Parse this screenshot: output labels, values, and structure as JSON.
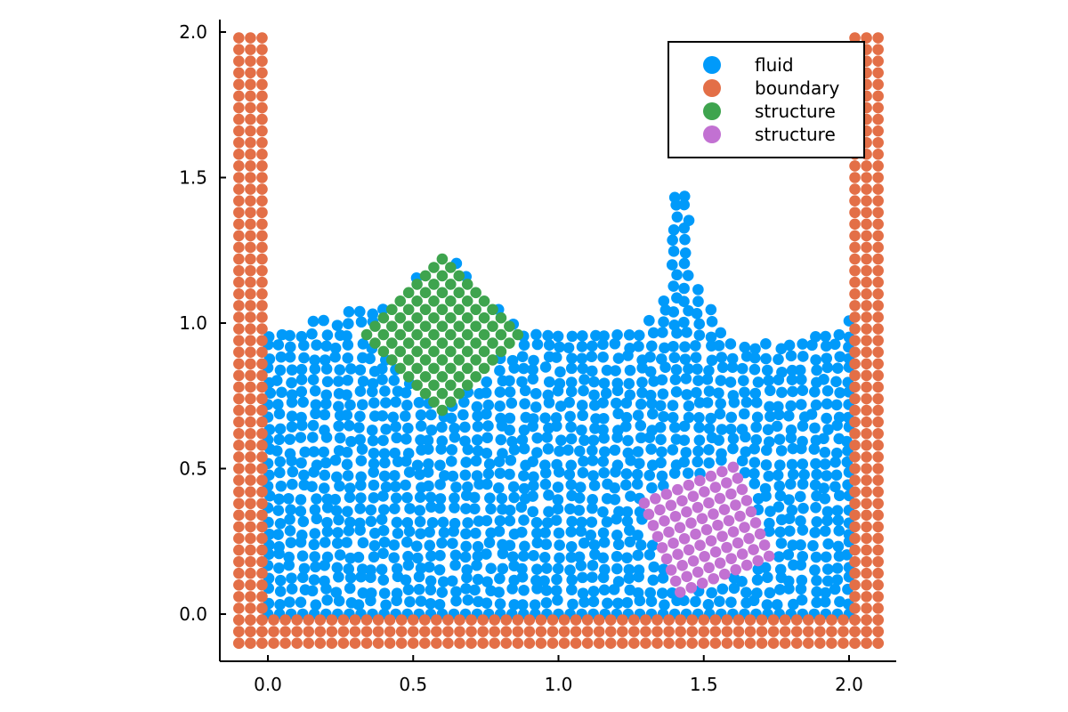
{
  "chart_data": {
    "type": "scatter",
    "title": "",
    "xlabel": "",
    "ylabel": "",
    "xlim": [
      -0.17,
      2.17
    ],
    "ylim": [
      -0.165,
      2.045
    ],
    "aspect": "equal",
    "grid": false,
    "legend_position": "top-right",
    "x_ticks": [
      0.0,
      0.5,
      1.0,
      1.5,
      2.0
    ],
    "x_tick_labels": [
      "0.0",
      "0.5",
      "1.0",
      "1.5",
      "2.0"
    ],
    "y_ticks": [
      0.0,
      0.5,
      1.0,
      1.5,
      2.0
    ],
    "y_tick_labels": [
      "0.0",
      "0.5",
      "1.0",
      "1.5",
      "2.0"
    ],
    "particle_spacing": 0.04,
    "series": [
      {
        "name": "fluid",
        "color": "#009AFA",
        "region": {
          "x": [
            0.0,
            2.0
          ],
          "y": [
            0.0,
            1.0
          ]
        },
        "surface_peaks": [
          {
            "x": 0.6,
            "y": 1.27
          },
          {
            "x": 1.43,
            "y": 1.44
          }
        ],
        "excludes": [
          "structure"
        ]
      },
      {
        "name": "boundary",
        "color": "#E36F47",
        "layers": 3,
        "left_wall_x": [
          -0.1,
          -0.06,
          -0.02
        ],
        "right_wall_x": [
          2.02,
          2.06,
          2.1
        ],
        "floor_y": [
          -0.1,
          -0.06,
          -0.02
        ],
        "wall_top_y": 1.98,
        "floor_x": [
          -0.1,
          2.1
        ]
      },
      {
        "name": "structure",
        "color": "#3EA44E",
        "center": {
          "x": 0.6,
          "y": 0.96
        },
        "half_diagonal": 0.26,
        "rotation_deg": 45
      },
      {
        "name": "structure",
        "color": "#C271D2",
        "center": {
          "x": 1.51,
          "y": 0.29
        },
        "half_side": 0.165,
        "rotation_deg": 22
      }
    ]
  }
}
